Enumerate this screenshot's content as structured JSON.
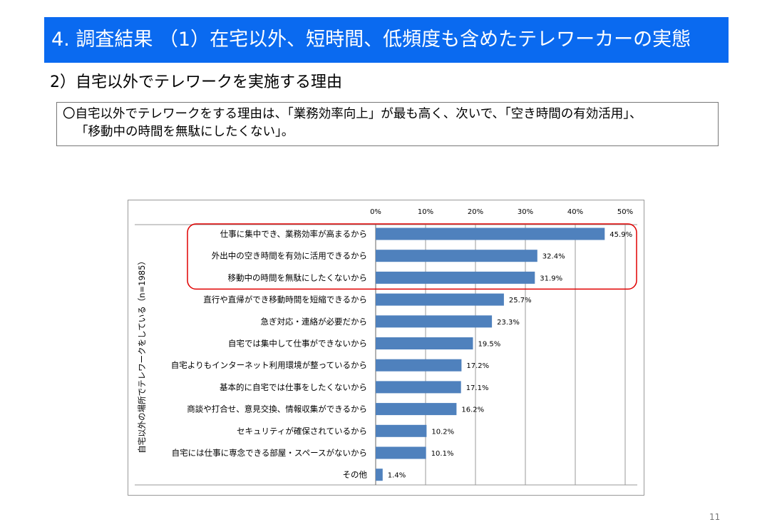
{
  "header": {
    "title": "4. 調査結果 （1）在宅以外、短時間、低頻度も含めたテレワーカーの実態"
  },
  "section": {
    "subtitle": "2）自宅以外でテレワークを実施する理由"
  },
  "summary": {
    "line1": "〇自宅以外でテレワークをする理由は、「業務効率向上」が最も高く、次いで、「空き時間の有効活用」、",
    "line2": "「移動中の時間を無駄にしたくない」。"
  },
  "page_number": "11",
  "colors": {
    "bar": "#4f81bd",
    "highlight": "#e00000",
    "banner": "#0a6af0"
  },
  "chart_data": {
    "type": "bar",
    "orientation": "horizontal",
    "title": "",
    "ylabel": "自宅以外の場所でテレワークをしている（n=1985）",
    "xlabel": "",
    "xlim": [
      0,
      50
    ],
    "xticks": [
      "0%",
      "10%",
      "20%",
      "30%",
      "40%",
      "50%"
    ],
    "grid": true,
    "categories": [
      "仕事に集中でき、業務効率が高まるから",
      "外出中の空き時間を有効に活用できるから",
      "移動中の時間を無駄にしたくないから",
      "直行や直帰ができ移動時間を短縮できるから",
      "急ぎ対応・連絡が必要だから",
      "自宅では集中して仕事ができないから",
      "自宅よりもインターネット利用環境が整っているから",
      "基本的に自宅では仕事をしたくないから",
      "商談や打合せ、意見交換、情報収集ができるから",
      "セキュリティが確保されているから",
      "自宅には仕事に専念できる部屋・スペースがないから",
      "その他"
    ],
    "values": [
      45.9,
      32.4,
      31.9,
      25.7,
      23.3,
      19.5,
      17.2,
      17.1,
      16.2,
      10.2,
      10.1,
      1.4
    ],
    "value_labels": [
      "45.9%",
      "32.4%",
      "31.9%",
      "25.7%",
      "23.3%",
      "19.5%",
      "17.2%",
      "17.1%",
      "16.2%",
      "10.2%",
      "10.1%",
      "1.4%"
    ],
    "highlighted_top": 3
  }
}
